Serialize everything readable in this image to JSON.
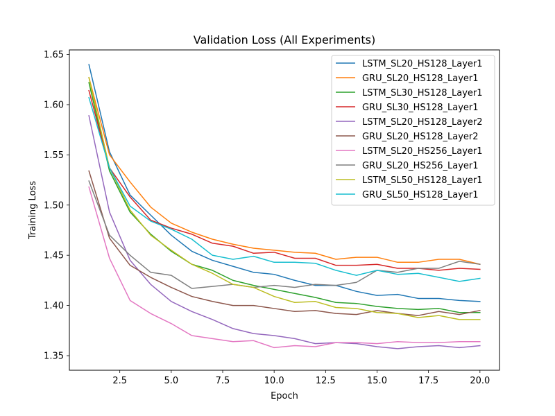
{
  "chart_data": {
    "type": "line",
    "title": "Validation Loss (All Experiments)",
    "xlabel": "Epoch",
    "ylabel": "Training Loss",
    "xlim": [
      0.05,
      20.95
    ],
    "ylim": [
      1.3355,
      1.6545
    ],
    "xticks": [
      2.5,
      5.0,
      7.5,
      10.0,
      12.5,
      15.0,
      17.5,
      20.0
    ],
    "xtick_labels": [
      "2.5",
      "5.0",
      "7.5",
      "10.0",
      "12.5",
      "15.0",
      "17.5",
      "20.0"
    ],
    "yticks": [
      1.35,
      1.4,
      1.45,
      1.5,
      1.55,
      1.6,
      1.65
    ],
    "ytick_labels": [
      "1.35",
      "1.40",
      "1.45",
      "1.50",
      "1.55",
      "1.60",
      "1.65"
    ],
    "grid": false,
    "legend_position": "top-right",
    "x": [
      1,
      2,
      3,
      4,
      5,
      6,
      7,
      8,
      9,
      10,
      11,
      12,
      13,
      14,
      15,
      16,
      17,
      18,
      19,
      20
    ],
    "series": [
      {
        "name": "LSTM_SL20_HS128_Layer1",
        "color": "#1f77b4",
        "values": [
          1.64,
          1.553,
          1.51,
          1.49,
          1.47,
          1.454,
          1.445,
          1.439,
          1.433,
          1.431,
          1.425,
          1.42,
          1.42,
          1.414,
          1.41,
          1.411,
          1.407,
          1.407,
          1.405,
          1.404
        ]
      },
      {
        "name": "GRU_SL20_HS128_Layer1",
        "color": "#ff7f0e",
        "values": [
          1.627,
          1.55,
          1.523,
          1.498,
          1.482,
          1.473,
          1.466,
          1.461,
          1.457,
          1.455,
          1.453,
          1.452,
          1.446,
          1.448,
          1.448,
          1.443,
          1.443,
          1.446,
          1.446,
          1.441
        ]
      },
      {
        "name": "LSTM_SL30_HS128_Layer1",
        "color": "#2ca02c",
        "values": [
          1.622,
          1.534,
          1.493,
          1.471,
          1.454,
          1.441,
          1.435,
          1.425,
          1.42,
          1.416,
          1.412,
          1.408,
          1.403,
          1.402,
          1.399,
          1.397,
          1.396,
          1.397,
          1.393,
          1.393
        ]
      },
      {
        "name": "GRU_SL30_HS128_Layer1",
        "color": "#d62728",
        "values": [
          1.614,
          1.537,
          1.508,
          1.485,
          1.477,
          1.471,
          1.462,
          1.459,
          1.452,
          1.453,
          1.447,
          1.447,
          1.44,
          1.44,
          1.441,
          1.437,
          1.437,
          1.435,
          1.437,
          1.436
        ]
      },
      {
        "name": "LSTM_SL20_HS128_Layer2",
        "color": "#9467bd",
        "values": [
          1.589,
          1.493,
          1.445,
          1.421,
          1.404,
          1.394,
          1.386,
          1.377,
          1.372,
          1.37,
          1.367,
          1.362,
          1.363,
          1.362,
          1.359,
          1.357,
          1.359,
          1.36,
          1.358,
          1.36
        ]
      },
      {
        "name": "GRU_SL20_HS128_Layer2",
        "color": "#8c564b",
        "values": [
          1.534,
          1.467,
          1.44,
          1.428,
          1.418,
          1.409,
          1.404,
          1.4,
          1.4,
          1.397,
          1.394,
          1.395,
          1.392,
          1.391,
          1.395,
          1.392,
          1.39,
          1.394,
          1.391,
          1.395
        ]
      },
      {
        "name": "LSTM_SL20_HS256_Layer1",
        "color": "#e377c2",
        "values": [
          1.518,
          1.447,
          1.405,
          1.392,
          1.382,
          1.37,
          1.367,
          1.364,
          1.365,
          1.358,
          1.36,
          1.359,
          1.363,
          1.363,
          1.362,
          1.364,
          1.363,
          1.363,
          1.364,
          1.364
        ]
      },
      {
        "name": "GRU_SL20_HS256_Layer1",
        "color": "#7f7f7f",
        "values": [
          1.524,
          1.47,
          1.45,
          1.433,
          1.43,
          1.417,
          1.419,
          1.421,
          1.418,
          1.42,
          1.418,
          1.421,
          1.42,
          1.423,
          1.435,
          1.433,
          1.437,
          1.437,
          1.444,
          1.441
        ]
      },
      {
        "name": "LSTM_SL50_HS128_Layer1",
        "color": "#bcbd22",
        "values": [
          1.627,
          1.537,
          1.495,
          1.47,
          1.455,
          1.441,
          1.432,
          1.421,
          1.418,
          1.409,
          1.403,
          1.404,
          1.398,
          1.397,
          1.393,
          1.392,
          1.388,
          1.39,
          1.386,
          1.386
        ]
      },
      {
        "name": "GRU_SL50_HS128_Layer1",
        "color": "#17becf",
        "values": [
          1.607,
          1.537,
          1.499,
          1.484,
          1.476,
          1.466,
          1.45,
          1.446,
          1.449,
          1.443,
          1.443,
          1.442,
          1.435,
          1.43,
          1.435,
          1.431,
          1.432,
          1.428,
          1.424,
          1.427
        ]
      }
    ]
  }
}
